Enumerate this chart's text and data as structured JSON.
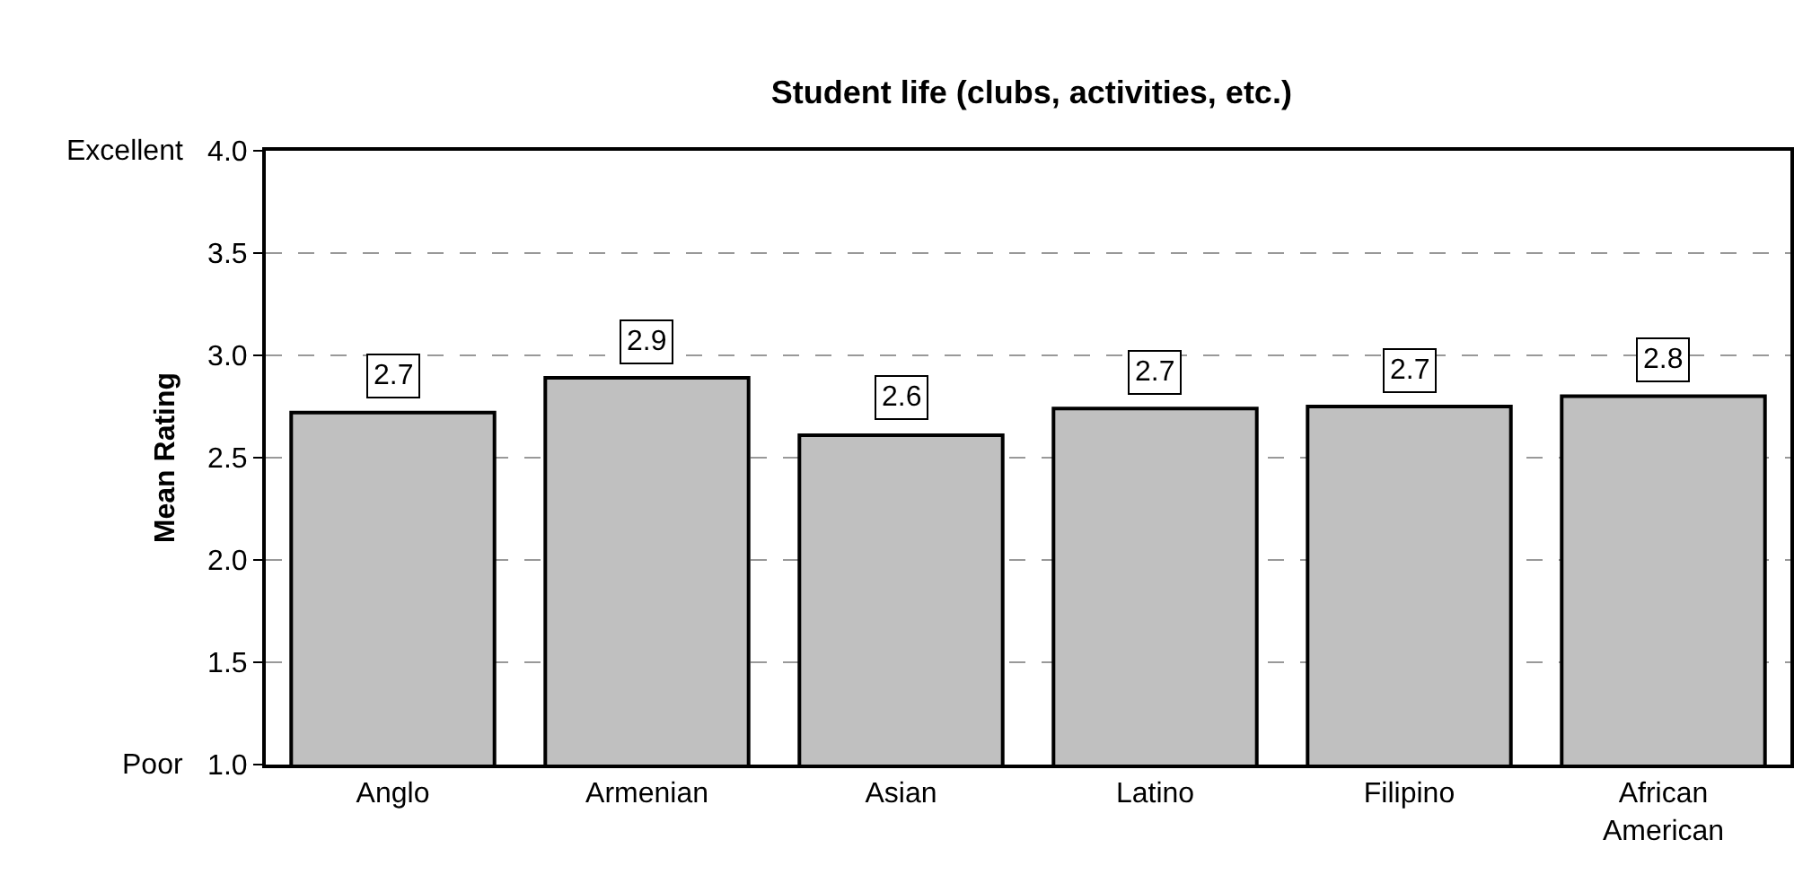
{
  "chart_data": {
    "type": "bar",
    "title": "Student life (clubs, activities, etc.)",
    "ylabel": "Mean Rating",
    "categories": [
      "Anglo",
      "Armenian",
      "Asian",
      "Latino",
      "Filipino",
      "African American"
    ],
    "values": [
      2.72,
      2.89,
      2.61,
      2.74,
      2.75,
      2.8
    ],
    "value_labels": [
      "2.7",
      "2.9",
      "2.6",
      "2.7",
      "2.7",
      "2.8"
    ],
    "color": "#c0c0c0",
    "ylim": [
      1,
      4
    ],
    "yticks": [
      {
        "value": 1,
        "label": "1.0"
      },
      {
        "value": 1.5,
        "label": "1.5"
      },
      {
        "value": 2,
        "label": "2.0"
      },
      {
        "value": 2.5,
        "label": "2.5"
      },
      {
        "value": 3,
        "label": "3.0"
      },
      {
        "value": 3.5,
        "label": "3.5"
      },
      {
        "value": 4,
        "label": "4.0"
      }
    ],
    "grid": "y",
    "annotations": [
      "Excellent",
      "Poor"
    ]
  }
}
